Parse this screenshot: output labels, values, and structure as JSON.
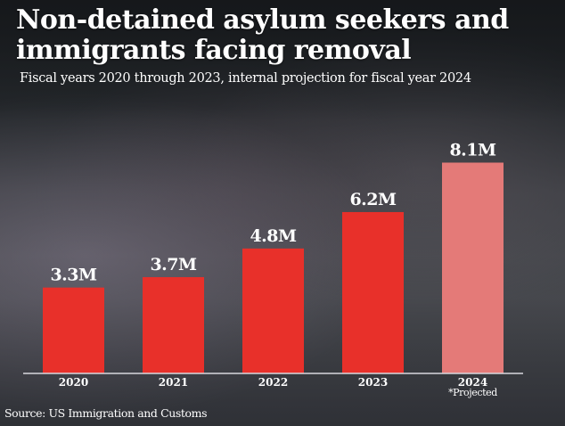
{
  "chart_data": {
    "type": "bar",
    "title": "Non-detained asylum seekers and immigrants facing removal",
    "subtitle": "Fiscal years 2020 through 2023, internal projection for fiscal year 2024",
    "categories": [
      "2020",
      "2021",
      "2022",
      "2023",
      "2024"
    ],
    "values": [
      3.3,
      3.7,
      4.8,
      6.2,
      8.1
    ],
    "value_labels": [
      "3.3M",
      "3.7M",
      "4.8M",
      "6.2M",
      "8.1M"
    ],
    "unit": "millions",
    "projected": [
      false,
      false,
      false,
      false,
      true
    ],
    "annotation": "*Projected",
    "ylim": [
      0,
      8.1
    ],
    "grid": false,
    "colors": {
      "actual": "#e8302a",
      "projected": "#e47a78"
    },
    "source": "Source: US Immigration and Customs"
  }
}
